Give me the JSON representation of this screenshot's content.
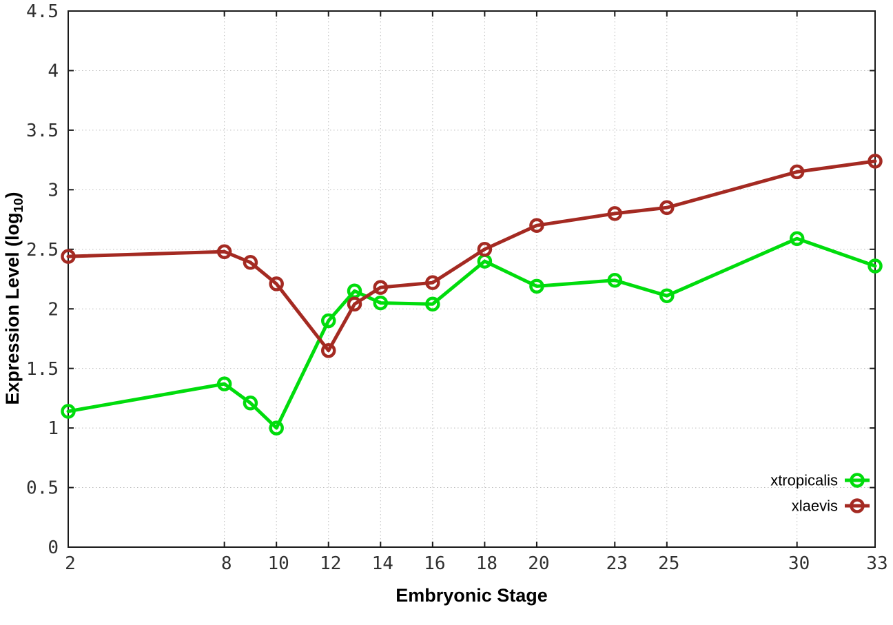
{
  "chart_data": {
    "type": "line",
    "title": "",
    "xlabel": "Embryonic Stage",
    "ylabel": "Expression Level (log10)",
    "ylabel_parts": {
      "main": "Expression Level (log",
      "sub": "10",
      "end": ")"
    },
    "x": [
      2,
      8,
      9,
      10,
      12,
      13,
      14,
      16,
      18,
      20,
      23,
      25,
      30,
      33
    ],
    "series": [
      {
        "name": "xtropicalis",
        "color": "#00dc0c",
        "values": [
          1.14,
          1.37,
          1.21,
          1.0,
          1.9,
          2.15,
          2.05,
          2.04,
          2.4,
          2.19,
          2.24,
          2.11,
          2.59,
          2.36
        ]
      },
      {
        "name": "xlaevis",
        "color": "#a42a22",
        "values": [
          2.44,
          2.48,
          2.39,
          2.21,
          1.65,
          2.04,
          2.18,
          2.22,
          2.5,
          2.7,
          2.8,
          2.85,
          3.15,
          3.24
        ]
      }
    ],
    "xticks": [
      2,
      8,
      10,
      12,
      14,
      16,
      18,
      20,
      23,
      25,
      30,
      33
    ],
    "yticks": [
      0,
      0.5,
      1,
      1.5,
      2,
      2.5,
      3,
      3.5,
      4,
      4.5
    ],
    "xlim": [
      2,
      33
    ],
    "ylim": [
      0,
      4.5
    ],
    "grid": true,
    "legend_position": "bottom-right",
    "style": {
      "background": "#ffffff",
      "border_color": "#1a1a1a",
      "grid_color": "#bcbcbc",
      "tick_label_color": "#303030",
      "legend_text_color": "#000000"
    }
  }
}
